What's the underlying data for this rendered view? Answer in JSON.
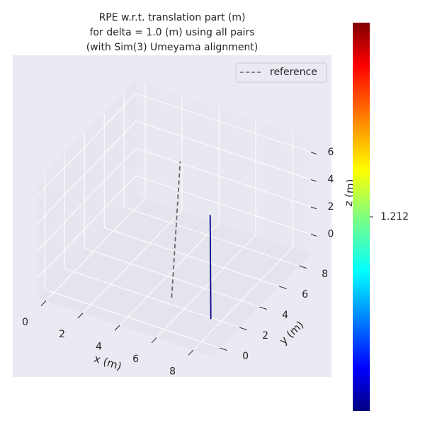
{
  "chart_data": {
    "type": "line3d",
    "title": [
      "RPE w.r.t. translation part (m)",
      "for delta = 1.0 (m) using all pairs",
      "(with Sim(3) Umeyama alignment)"
    ],
    "xlabel": "x (m)",
    "ylabel": "y (m)",
    "zlabel": "z (m)",
    "xlim": [
      -0.5,
      9.0
    ],
    "ylim": [
      -0.8,
      9.2
    ],
    "zlim": [
      -1.4,
      7.0
    ],
    "xticks": [
      0,
      2,
      4,
      6,
      8
    ],
    "yticks": [
      0,
      2,
      4,
      6,
      8
    ],
    "zticks": [
      0,
      2,
      4,
      6
    ],
    "grid": true,
    "legend": "upper right",
    "series": [
      {
        "name": "reference",
        "color": "#666666",
        "dash": true,
        "x": [
          5.8,
          4.0
        ],
        "y": [
          1.1,
          5.3
        ],
        "z": [
          0,
          6
        ]
      },
      {
        "color": "#00008b",
        "x": [
          8.25,
          7.35
        ],
        "y": [
          0.5,
          2.1
        ],
        "z": [
          0,
          6
        ]
      }
    ],
    "colorbar": {
      "colormap": "jet",
      "lim": [
        1.202,
        1.222
      ],
      "ticks": [
        1.212
      ]
    }
  }
}
